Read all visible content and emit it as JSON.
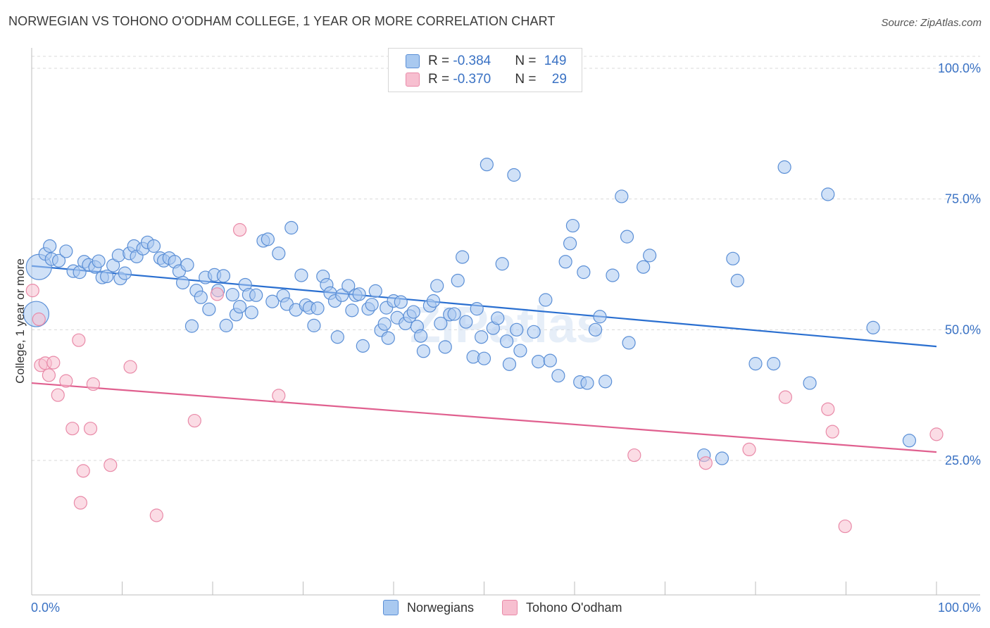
{
  "title": "NORWEGIAN VS TOHONO O'ODHAM COLLEGE, 1 YEAR OR MORE CORRELATION CHART",
  "source": "Source: ZipAtlas.com",
  "legend_top": {
    "rows": [
      {
        "r_label": "R = ",
        "r_value": "-0.384",
        "n_label": "N = ",
        "n_value": "149"
      },
      {
        "r_label": "R = ",
        "r_value": "-0.370",
        "n_label": "N = ",
        "n_value": "29"
      }
    ]
  },
  "colors": {
    "blue_fill": "#a9c9f0",
    "blue_stroke": "#5b8fd6",
    "blue_line": "#2a6fd0",
    "pink_fill": "#f7bfd0",
    "pink_stroke": "#e98aa8",
    "pink_line": "#e0608f",
    "axis_text": "#3a72c4",
    "grid": "#d9d9d9"
  },
  "chart_data": {
    "type": "scatter",
    "xlabel": "",
    "ylabel": "College, 1 year or more",
    "x_tick_labels": [
      "0.0%",
      "100.0%"
    ],
    "y_tick_labels": [
      "100.0%",
      "75.0%",
      "50.0%",
      "25.0%"
    ],
    "xlim": [
      0,
      100
    ],
    "ylim": [
      0,
      103
    ],
    "y_gridlines": [
      25,
      50,
      75,
      100
    ],
    "legend_placement": "bottom-center",
    "watermark": "ZIPatlas",
    "series": [
      {
        "name": "Norwegians",
        "r": -0.384,
        "n": 149,
        "trend": {
          "x0": 0,
          "y0": 62.2,
          "x1": 100,
          "y1": 46.8
        },
        "points": [
          [
            0.8,
            62.0,
            2
          ],
          [
            0.5,
            53.0,
            2
          ],
          [
            1.5,
            64.5,
            1
          ],
          [
            2.0,
            66.0,
            1
          ],
          [
            2.2,
            63.5,
            1
          ],
          [
            3.0,
            63.2,
            1
          ],
          [
            3.8,
            65.0,
            1
          ],
          [
            4.6,
            61.2,
            1
          ],
          [
            5.3,
            61.0,
            1
          ],
          [
            5.8,
            63.0,
            1
          ],
          [
            6.3,
            62.4,
            1
          ],
          [
            7.0,
            62.0,
            1
          ],
          [
            7.4,
            63.1,
            1
          ],
          [
            7.8,
            60.0,
            1
          ],
          [
            8.3,
            60.2,
            1
          ],
          [
            9.0,
            62.3,
            1
          ],
          [
            9.6,
            64.2,
            1
          ],
          [
            9.8,
            59.8,
            1
          ],
          [
            10.3,
            60.8,
            1
          ],
          [
            10.8,
            64.6,
            1
          ],
          [
            11.3,
            66.0,
            1
          ],
          [
            11.6,
            64.0,
            1
          ],
          [
            12.3,
            65.5,
            1
          ],
          [
            12.8,
            66.7,
            1
          ],
          [
            13.5,
            66.0,
            1
          ],
          [
            14.2,
            63.7,
            1
          ],
          [
            14.6,
            63.2,
            1
          ],
          [
            15.2,
            63.7,
            1
          ],
          [
            15.8,
            63.0,
            1
          ],
          [
            16.3,
            61.2,
            1
          ],
          [
            16.7,
            59.0,
            1
          ],
          [
            17.2,
            62.4,
            1
          ],
          [
            17.7,
            50.7,
            1
          ],
          [
            18.2,
            57.5,
            1
          ],
          [
            18.7,
            56.2,
            1
          ],
          [
            19.2,
            60.0,
            1
          ],
          [
            19.6,
            53.9,
            1
          ],
          [
            20.2,
            60.5,
            1
          ],
          [
            20.6,
            57.5,
            1
          ],
          [
            21.2,
            60.3,
            1
          ],
          [
            21.5,
            50.8,
            1
          ],
          [
            22.2,
            56.7,
            1
          ],
          [
            22.6,
            52.9,
            1
          ],
          [
            23.0,
            54.4,
            1
          ],
          [
            23.6,
            58.6,
            1
          ],
          [
            24.0,
            56.7,
            1
          ],
          [
            24.3,
            53.3,
            1
          ],
          [
            24.8,
            56.6,
            1
          ],
          [
            25.6,
            67.0,
            1
          ],
          [
            26.1,
            67.3,
            1
          ],
          [
            26.6,
            55.4,
            1
          ],
          [
            27.3,
            64.6,
            1
          ],
          [
            27.8,
            56.5,
            1
          ],
          [
            28.2,
            54.9,
            1
          ],
          [
            28.7,
            69.5,
            1
          ],
          [
            29.2,
            53.8,
            1
          ],
          [
            29.8,
            60.4,
            1
          ],
          [
            30.3,
            54.7,
            1
          ],
          [
            30.7,
            54.2,
            1
          ],
          [
            31.2,
            50.8,
            1
          ],
          [
            31.6,
            54.1,
            1
          ],
          [
            32.2,
            60.2,
            1
          ],
          [
            32.6,
            58.6,
            1
          ],
          [
            33.0,
            57.0,
            1
          ],
          [
            33.5,
            55.5,
            1
          ],
          [
            33.8,
            48.6,
            1
          ],
          [
            34.3,
            56.6,
            1
          ],
          [
            35.0,
            58.4,
            1
          ],
          [
            35.4,
            53.7,
            1
          ],
          [
            35.8,
            56.6,
            1
          ],
          [
            36.2,
            56.8,
            1
          ],
          [
            36.6,
            46.9,
            1
          ],
          [
            37.2,
            54.0,
            1
          ],
          [
            37.6,
            54.8,
            1
          ],
          [
            38.0,
            57.4,
            1
          ],
          [
            38.6,
            49.9,
            1
          ],
          [
            39.0,
            51.1,
            1
          ],
          [
            39.2,
            54.2,
            1
          ],
          [
            39.4,
            48.4,
            1
          ],
          [
            40.0,
            55.5,
            1
          ],
          [
            40.4,
            52.3,
            1
          ],
          [
            40.8,
            55.3,
            1
          ],
          [
            41.3,
            51.2,
            1
          ],
          [
            41.8,
            52.6,
            1
          ],
          [
            42.2,
            53.4,
            1
          ],
          [
            42.6,
            50.6,
            1
          ],
          [
            43.0,
            48.8,
            1
          ],
          [
            43.3,
            45.9,
            1
          ],
          [
            44.0,
            54.6,
            1
          ],
          [
            44.4,
            55.5,
            1
          ],
          [
            44.8,
            58.4,
            1
          ],
          [
            45.2,
            51.2,
            1
          ],
          [
            45.7,
            46.7,
            1
          ],
          [
            46.2,
            52.9,
            1
          ],
          [
            46.7,
            53.0,
            1
          ],
          [
            47.1,
            59.4,
            1
          ],
          [
            47.6,
            63.9,
            1
          ],
          [
            48.0,
            51.5,
            1
          ],
          [
            48.8,
            44.8,
            1
          ],
          [
            49.2,
            54.0,
            1
          ],
          [
            49.7,
            48.6,
            1
          ],
          [
            50.0,
            44.5,
            1
          ],
          [
            50.3,
            81.6,
            1
          ],
          [
            51.0,
            50.3,
            1
          ],
          [
            51.5,
            52.2,
            1
          ],
          [
            52.0,
            62.6,
            1
          ],
          [
            52.5,
            47.8,
            1
          ],
          [
            52.8,
            43.4,
            1
          ],
          [
            53.3,
            79.6,
            1
          ],
          [
            53.6,
            50.0,
            1
          ],
          [
            54.0,
            46.0,
            1
          ],
          [
            55.5,
            49.6,
            1
          ],
          [
            56.0,
            43.9,
            1
          ],
          [
            56.8,
            55.7,
            1
          ],
          [
            57.3,
            44.1,
            1
          ],
          [
            58.2,
            41.2,
            1
          ],
          [
            59.0,
            63.0,
            1
          ],
          [
            59.5,
            66.5,
            1
          ],
          [
            59.8,
            69.9,
            1
          ],
          [
            60.6,
            40.0,
            1
          ],
          [
            61.0,
            61.0,
            1
          ],
          [
            61.4,
            39.8,
            1
          ],
          [
            62.3,
            50.0,
            1
          ],
          [
            62.8,
            52.5,
            1
          ],
          [
            63.4,
            40.1,
            1
          ],
          [
            64.2,
            60.4,
            1
          ],
          [
            65.2,
            75.5,
            1
          ],
          [
            65.8,
            67.8,
            1
          ],
          [
            66.0,
            47.5,
            1
          ],
          [
            67.6,
            62.0,
            1
          ],
          [
            68.3,
            64.2,
            1
          ],
          [
            74.3,
            26.0,
            1
          ],
          [
            76.3,
            25.4,
            1
          ],
          [
            77.5,
            63.6,
            1
          ],
          [
            78.0,
            59.4,
            1
          ],
          [
            80.0,
            43.5,
            1
          ],
          [
            82.0,
            43.5,
            1
          ],
          [
            83.2,
            81.1,
            1
          ],
          [
            86.0,
            39.8,
            1
          ],
          [
            88.0,
            75.9,
            1
          ],
          [
            93.0,
            50.4,
            1
          ],
          [
            97.0,
            28.8,
            1
          ]
        ]
      },
      {
        "name": "Tohono O'odham",
        "r": -0.37,
        "n": 29,
        "trend": {
          "x0": 0,
          "y0": 39.8,
          "x1": 100,
          "y1": 26.6
        },
        "points": [
          [
            0.1,
            57.5,
            1
          ],
          [
            0.8,
            52.0,
            1
          ],
          [
            1.0,
            43.2,
            1
          ],
          [
            1.5,
            43.6,
            1
          ],
          [
            1.9,
            41.3,
            1
          ],
          [
            2.4,
            43.7,
            1
          ],
          [
            2.9,
            37.5,
            1
          ],
          [
            3.8,
            40.2,
            1
          ],
          [
            4.5,
            31.1,
            1
          ],
          [
            5.2,
            48.0,
            1
          ],
          [
            5.4,
            16.9,
            1
          ],
          [
            5.7,
            23.0,
            1
          ],
          [
            6.5,
            31.1,
            1
          ],
          [
            6.8,
            39.6,
            1
          ],
          [
            8.7,
            24.1,
            1
          ],
          [
            10.9,
            42.9,
            1
          ],
          [
            13.8,
            14.5,
            1
          ],
          [
            18.0,
            32.6,
            1
          ],
          [
            20.5,
            56.8,
            1
          ],
          [
            23.0,
            69.1,
            1
          ],
          [
            27.3,
            37.4,
            1
          ],
          [
            66.6,
            26.0,
            1
          ],
          [
            74.5,
            24.5,
            1
          ],
          [
            79.3,
            27.1,
            1
          ],
          [
            83.3,
            37.1,
            1
          ],
          [
            88.0,
            34.8,
            1
          ],
          [
            88.5,
            30.5,
            1
          ],
          [
            89.9,
            12.4,
            1
          ],
          [
            100.0,
            30.0,
            1
          ]
        ]
      }
    ]
  }
}
